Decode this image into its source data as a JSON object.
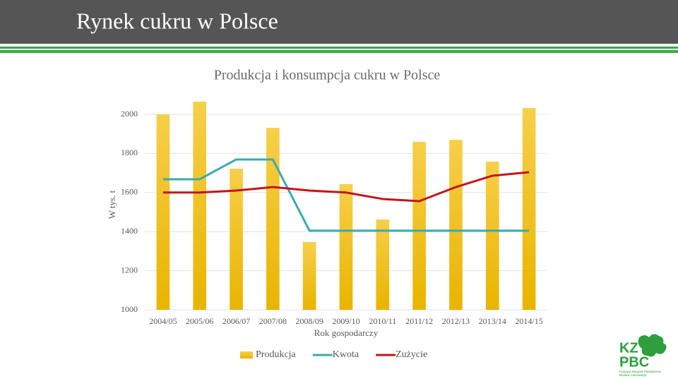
{
  "header": {
    "title": "Rynek cukru w Polsce"
  },
  "chart_data": {
    "type": "bar",
    "title": "Produkcja i konsumpcja cukru w Polsce",
    "y_label": "W tys. t",
    "x_label": "Rok gospodarczy",
    "categories": [
      "2004/05",
      "2005/06",
      "2006/07",
      "2007/08",
      "2008/09",
      "2009/10",
      "2010/11",
      "2011/12",
      "2012/13",
      "2013/14",
      "2014/15"
    ],
    "series": [
      {
        "name": "Produkcja",
        "type": "bar",
        "color": "#f2c12e",
        "values": [
          2000,
          2065,
          1722,
          1931,
          1347,
          1643,
          1462,
          1859,
          1870,
          1758,
          2032
        ]
      },
      {
        "name": "Kwota",
        "type": "line",
        "color": "#3aaab0",
        "values": [
          1668,
          1668,
          1769,
          1769,
          1405,
          1405,
          1405,
          1405,
          1405,
          1405,
          1405
        ]
      },
      {
        "name": "Zużycie",
        "type": "line",
        "color": "#c0161b",
        "values": [
          1600,
          1600,
          1610,
          1628,
          1610,
          1600,
          1567,
          1556,
          1628,
          1686,
          1704
        ]
      }
    ],
    "ylim": [
      1000,
      2000
    ],
    "yticks": [
      1000,
      1200,
      1400,
      1600,
      1800,
      2000
    ],
    "grid": true,
    "legend": "bottom"
  },
  "logo": {
    "line1": "KZ",
    "line2": "PBC",
    "caption": [
      "Krajowy Związek Plantatorów",
      "Buraka Cukrowego"
    ]
  }
}
